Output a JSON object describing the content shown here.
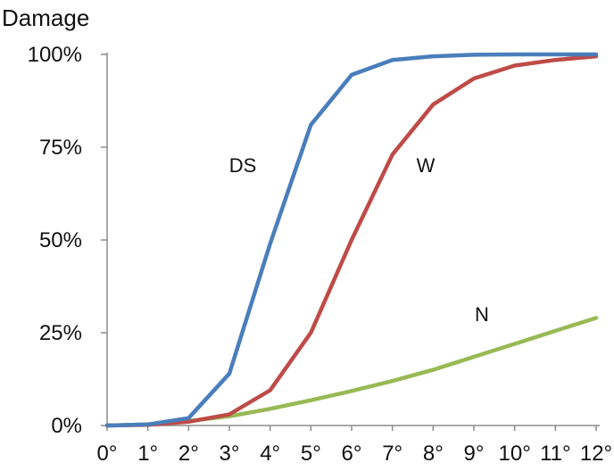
{
  "chart_data": {
    "type": "line",
    "ylabel": "Damage",
    "xlabel": "",
    "x": [
      0,
      1,
      2,
      3,
      4,
      5,
      6,
      7,
      8,
      9,
      10,
      11,
      12
    ],
    "x_tick_labels": [
      "0°",
      "1°",
      "2°",
      "3°",
      "4°",
      "5°",
      "6°",
      "7°",
      "8°",
      "9°",
      "10°",
      "11°",
      "12°"
    ],
    "y_ticks": [
      0,
      25,
      50,
      75,
      100
    ],
    "y_tick_labels": [
      "0%",
      "25%",
      "50%",
      "75%",
      "100%"
    ],
    "ylim": [
      0,
      100
    ],
    "xlim": [
      0,
      12
    ],
    "grid": false,
    "legend": "none",
    "series": [
      {
        "name": "DS",
        "color": "#4a7ebb",
        "values": [
          0,
          0.3,
          2,
          14,
          49,
          81,
          94.5,
          98.5,
          99.5,
          99.9,
          100,
          100,
          100
        ]
      },
      {
        "name": "W",
        "color": "#be4b48",
        "values": [
          0,
          0.2,
          1,
          3,
          9.5,
          25,
          50,
          73,
          86.5,
          93.5,
          97,
          98.5,
          99.5
        ]
      },
      {
        "name": "N",
        "color": "#98b954",
        "values": [
          0,
          0.3,
          1.2,
          2.5,
          4.5,
          6.8,
          9.3,
          12,
          15,
          18.5,
          22,
          25.5,
          29
        ]
      }
    ]
  }
}
